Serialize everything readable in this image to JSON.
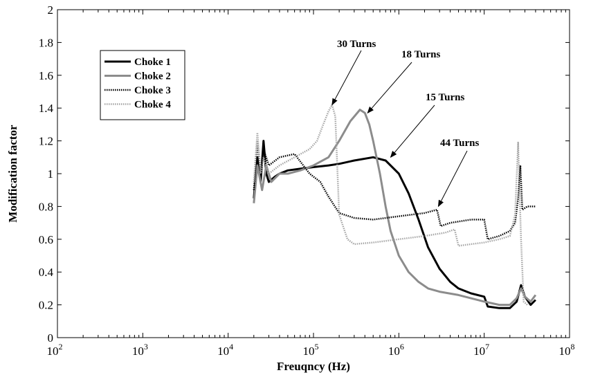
{
  "chart_data": {
    "type": "line",
    "title": "",
    "xlabel": "Freuqncy (Hz)",
    "ylabel": "Modification factor",
    "xscale": "log",
    "xlim": [
      100,
      100000000
    ],
    "ylim": [
      0,
      2
    ],
    "x_ticks": [
      {
        "value": 100,
        "base": "10",
        "exp": "2"
      },
      {
        "value": 1000,
        "base": "10",
        "exp": "3"
      },
      {
        "value": 10000,
        "base": "10",
        "exp": "4"
      },
      {
        "value": 100000,
        "base": "10",
        "exp": "5"
      },
      {
        "value": 1000000,
        "base": "10",
        "exp": "6"
      },
      {
        "value": 10000000,
        "base": "10",
        "exp": "7"
      },
      {
        "value": 100000000,
        "base": "10",
        "exp": "8"
      }
    ],
    "y_ticks": [
      "0",
      "0.2",
      "0.4",
      "0.6",
      "0.8",
      "1",
      "1.2",
      "1.4",
      "1.6",
      "1.8",
      "2"
    ],
    "grid": false,
    "legend_position": "top-left",
    "series": [
      {
        "name": "Choke 1",
        "color": "#000000",
        "style": "solid",
        "points": [
          [
            20000,
            0.85
          ],
          [
            22000,
            1.1
          ],
          [
            24000,
            0.95
          ],
          [
            26000,
            1.2
          ],
          [
            28000,
            1.0
          ],
          [
            30000,
            0.95
          ],
          [
            35000,
            0.98
          ],
          [
            40000,
            1.0
          ],
          [
            50000,
            1.02
          ],
          [
            70000,
            1.03
          ],
          [
            100000,
            1.04
          ],
          [
            150000,
            1.05
          ],
          [
            200000,
            1.06
          ],
          [
            300000,
            1.08
          ],
          [
            500000,
            1.1
          ],
          [
            700000,
            1.08
          ],
          [
            1000000,
            1.0
          ],
          [
            1300000,
            0.88
          ],
          [
            1700000,
            0.72
          ],
          [
            2200000,
            0.55
          ],
          [
            3000000,
            0.42
          ],
          [
            4000000,
            0.34
          ],
          [
            5000000,
            0.3
          ],
          [
            7000000,
            0.27
          ],
          [
            10000000,
            0.25
          ],
          [
            11000000,
            0.19
          ],
          [
            15000000,
            0.18
          ],
          [
            20000000,
            0.18
          ],
          [
            24000000,
            0.22
          ],
          [
            27000000,
            0.32
          ],
          [
            30000000,
            0.25
          ],
          [
            35000000,
            0.2
          ],
          [
            40000000,
            0.23
          ]
        ]
      },
      {
        "name": "Choke 2",
        "color": "#8c8c8c",
        "style": "solid",
        "points": [
          [
            20000,
            0.82
          ],
          [
            22000,
            1.05
          ],
          [
            25000,
            0.9
          ],
          [
            28000,
            1.05
          ],
          [
            32000,
            0.95
          ],
          [
            40000,
            1.0
          ],
          [
            50000,
            1.0
          ],
          [
            70000,
            1.02
          ],
          [
            100000,
            1.05
          ],
          [
            150000,
            1.1
          ],
          [
            200000,
            1.2
          ],
          [
            270000,
            1.32
          ],
          [
            350000,
            1.39
          ],
          [
            400000,
            1.37
          ],
          [
            450000,
            1.3
          ],
          [
            500000,
            1.2
          ],
          [
            600000,
            1.0
          ],
          [
            700000,
            0.8
          ],
          [
            800000,
            0.65
          ],
          [
            1000000,
            0.5
          ],
          [
            1300000,
            0.4
          ],
          [
            1700000,
            0.34
          ],
          [
            2200000,
            0.3
          ],
          [
            3000000,
            0.28
          ],
          [
            5000000,
            0.26
          ],
          [
            7000000,
            0.24
          ],
          [
            10000000,
            0.22
          ],
          [
            15000000,
            0.2
          ],
          [
            20000000,
            0.2
          ],
          [
            24000000,
            0.24
          ],
          [
            27000000,
            0.3
          ],
          [
            30000000,
            0.25
          ],
          [
            35000000,
            0.22
          ],
          [
            40000000,
            0.26
          ]
        ]
      },
      {
        "name": "Choke 3",
        "color": "#000000",
        "style": "dotted",
        "points": [
          [
            20000,
            0.9
          ],
          [
            22000,
            1.2
          ],
          [
            24000,
            1.0
          ],
          [
            26000,
            1.15
          ],
          [
            30000,
            1.05
          ],
          [
            40000,
            1.1
          ],
          [
            60000,
            1.12
          ],
          [
            90000,
            1.0
          ],
          [
            120000,
            0.95
          ],
          [
            150000,
            0.86
          ],
          [
            200000,
            0.76
          ],
          [
            300000,
            0.73
          ],
          [
            500000,
            0.72
          ],
          [
            1000000,
            0.74
          ],
          [
            2000000,
            0.76
          ],
          [
            2800000,
            0.78
          ],
          [
            3100000,
            0.68
          ],
          [
            4000000,
            0.7
          ],
          [
            7000000,
            0.72
          ],
          [
            10000000,
            0.72
          ],
          [
            11000000,
            0.6
          ],
          [
            15000000,
            0.62
          ],
          [
            20000000,
            0.65
          ],
          [
            23000000,
            0.7
          ],
          [
            25000000,
            0.85
          ],
          [
            26500000,
            1.05
          ],
          [
            28000000,
            0.78
          ],
          [
            32000000,
            0.8
          ],
          [
            40000000,
            0.8
          ]
        ]
      },
      {
        "name": "Choke 4",
        "color": "#a6a6a6",
        "style": "dotted",
        "points": [
          [
            20000,
            0.95
          ],
          [
            22000,
            1.25
          ],
          [
            24000,
            1.0
          ],
          [
            26000,
            1.1
          ],
          [
            30000,
            1.0
          ],
          [
            40000,
            1.05
          ],
          [
            60000,
            1.1
          ],
          [
            90000,
            1.15
          ],
          [
            110000,
            1.2
          ],
          [
            130000,
            1.3
          ],
          [
            150000,
            1.38
          ],
          [
            165000,
            1.42
          ],
          [
            180000,
            1.35
          ],
          [
            200000,
            0.75
          ],
          [
            250000,
            0.6
          ],
          [
            300000,
            0.57
          ],
          [
            500000,
            0.58
          ],
          [
            1000000,
            0.6
          ],
          [
            2000000,
            0.62
          ],
          [
            3500000,
            0.64
          ],
          [
            4500000,
            0.66
          ],
          [
            5000000,
            0.56
          ],
          [
            7000000,
            0.57
          ],
          [
            10000000,
            0.58
          ],
          [
            15000000,
            0.6
          ],
          [
            20000000,
            0.62
          ],
          [
            23000000,
            0.75
          ],
          [
            25000000,
            1.19
          ],
          [
            27000000,
            0.6
          ],
          [
            29000000,
            0.22
          ],
          [
            32000000,
            0.2
          ]
        ]
      }
    ],
    "annotations": [
      {
        "text": "30 Turns",
        "target": [
          165000,
          1.42
        ]
      },
      {
        "text": "18 Turns",
        "target": [
          430000,
          1.37
        ]
      },
      {
        "text": "15 Turns",
        "target": [
          800000,
          1.1
        ]
      },
      {
        "text": "44 Turns",
        "target": [
          2900000,
          0.8
        ]
      }
    ]
  }
}
